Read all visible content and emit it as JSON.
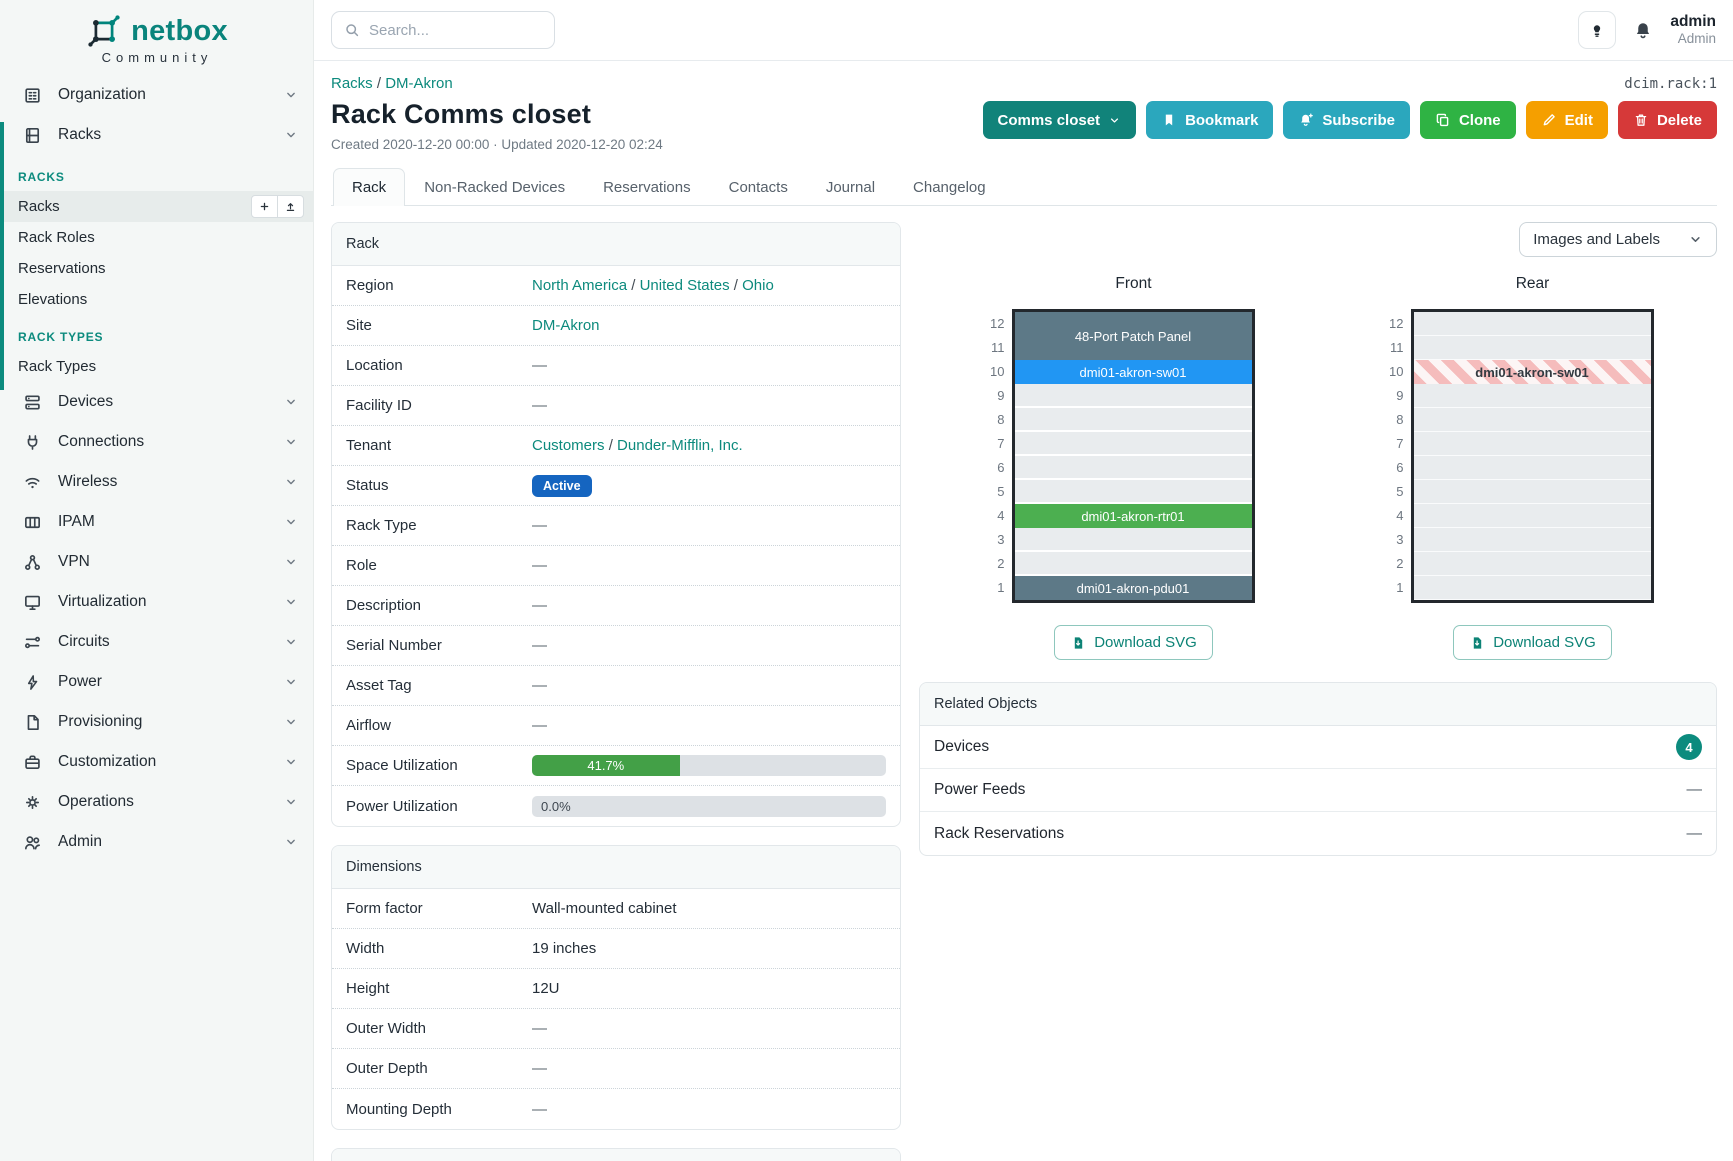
{
  "brand": {
    "name": "netbox",
    "subtitle": "Community"
  },
  "topbar": {
    "search_placeholder": "Search...",
    "user": {
      "username": "admin",
      "role": "Admin"
    }
  },
  "object_id": "dcim.rack:1",
  "breadcrumb": {
    "items": [
      "Racks",
      "DM-Akron"
    ],
    "separator": "/"
  },
  "page": {
    "title": "Rack Comms closet",
    "meta": "Created 2020-12-20 00:00 · Updated 2020-12-20 02:24"
  },
  "actions": [
    {
      "label": "Comms closet",
      "color": "#11837a",
      "chevron": true
    },
    {
      "label": "Bookmark",
      "color": "#2ba7bd",
      "icon": "bookmark"
    },
    {
      "label": "Subscribe",
      "color": "#2ba7bd",
      "icon": "bell-plus"
    },
    {
      "label": "Clone",
      "color": "#2fb344",
      "icon": "copy"
    },
    {
      "label": "Edit",
      "color": "#f59f00",
      "icon": "pencil"
    },
    {
      "label": "Delete",
      "color": "#d63939",
      "icon": "trash"
    }
  ],
  "tabs": [
    {
      "label": "Rack",
      "active": true
    },
    {
      "label": "Non-Racked Devices"
    },
    {
      "label": "Reservations"
    },
    {
      "label": "Contacts"
    },
    {
      "label": "Journal"
    },
    {
      "label": "Changelog"
    }
  ],
  "sidebar": {
    "top_groups": [
      {
        "label": "Organization",
        "icon": "building"
      },
      {
        "label": "Racks",
        "icon": "rack"
      }
    ],
    "sections": [
      {
        "title": "RACKS",
        "items": [
          {
            "label": "Racks",
            "active": true,
            "buttons": [
              "plus",
              "upload"
            ]
          },
          {
            "label": "Rack Roles"
          },
          {
            "label": "Reservations"
          },
          {
            "label": "Elevations"
          }
        ]
      },
      {
        "title": "RACK TYPES",
        "items": [
          {
            "label": "Rack Types"
          }
        ]
      }
    ],
    "bottom_groups": [
      {
        "label": "Devices",
        "icon": "server"
      },
      {
        "label": "Connections",
        "icon": "plug"
      },
      {
        "label": "Wireless",
        "icon": "wifi"
      },
      {
        "label": "IPAM",
        "icon": "ip-grid"
      },
      {
        "label": "VPN",
        "icon": "vpn"
      },
      {
        "label": "Virtualization",
        "icon": "monitor"
      },
      {
        "label": "Circuits",
        "icon": "circuit"
      },
      {
        "label": "Power",
        "icon": "bolt"
      },
      {
        "label": "Provisioning",
        "icon": "document"
      },
      {
        "label": "Customization",
        "icon": "briefcase"
      },
      {
        "label": "Operations",
        "icon": "operations"
      },
      {
        "label": "Admin",
        "icon": "users"
      }
    ]
  },
  "rack_panel": {
    "title": "Rack",
    "rows": [
      {
        "label": "Region",
        "type": "links",
        "parts": [
          "North America",
          "United States",
          "Ohio"
        ],
        "separator": "/"
      },
      {
        "label": "Site",
        "type": "links",
        "parts": [
          "DM-Akron"
        ],
        "separator": "/"
      },
      {
        "label": "Location",
        "type": "text",
        "value": "—",
        "muted": true
      },
      {
        "label": "Facility ID",
        "type": "text",
        "value": "—",
        "muted": true
      },
      {
        "label": "Tenant",
        "type": "links",
        "parts": [
          "Customers",
          "Dunder-Mifflin, Inc."
        ],
        "separator": "/"
      },
      {
        "label": "Status",
        "type": "badge",
        "value": "Active",
        "bg": "#1565c0"
      },
      {
        "label": "Rack Type",
        "type": "text",
        "value": "—",
        "muted": true
      },
      {
        "label": "Role",
        "type": "text",
        "value": "—",
        "muted": true
      },
      {
        "label": "Description",
        "type": "text",
        "value": "—",
        "muted": true
      },
      {
        "label": "Serial Number",
        "type": "text",
        "value": "—",
        "muted": true
      },
      {
        "label": "Asset Tag",
        "type": "text",
        "value": "—",
        "muted": true
      },
      {
        "label": "Airflow",
        "type": "text",
        "value": "—",
        "muted": true
      },
      {
        "label": "Space Utilization",
        "type": "progress",
        "percent": 41.7,
        "text": "41.7%",
        "color": "#43a047"
      },
      {
        "label": "Power Utilization",
        "type": "progress",
        "percent": 0,
        "text": "0.0%",
        "color": "#43a047"
      }
    ]
  },
  "dimensions_panel": {
    "title": "Dimensions",
    "rows": [
      {
        "label": "Form factor",
        "type": "text",
        "value": "Wall-mounted cabinet"
      },
      {
        "label": "Width",
        "type": "text",
        "value": "19 inches"
      },
      {
        "label": "Height",
        "type": "text",
        "value": "12U"
      },
      {
        "label": "Outer Width",
        "type": "text",
        "value": "—",
        "muted": true
      },
      {
        "label": "Outer Depth",
        "type": "text",
        "value": "—",
        "muted": true
      },
      {
        "label": "Mounting Depth",
        "type": "text",
        "value": "—",
        "muted": true
      }
    ]
  },
  "elevations": {
    "view_selector": "Images and Labels",
    "download_label": "Download SVG",
    "units": [
      "12",
      "11",
      "10",
      "9",
      "8",
      "7",
      "6",
      "5",
      "4",
      "3",
      "2",
      "1"
    ],
    "racks": [
      {
        "title": "Front",
        "variant": "front",
        "devices": [
          {
            "label": "48-Port Patch Panel",
            "top_unit": 12,
            "span": 2,
            "bg": "#5d7987",
            "fg": "#ffffff"
          },
          {
            "label": "dmi01-akron-sw01",
            "top_unit": 10,
            "span": 1,
            "bg": "#2196f3",
            "fg": "#ffffff"
          },
          {
            "label": "dmi01-akron-rtr01",
            "top_unit": 4,
            "span": 1,
            "bg": "#4caf50",
            "fg": "#ffffff"
          },
          {
            "label": "dmi01-akron-pdu01",
            "top_unit": 1,
            "span": 1,
            "bg": "#5d7987",
            "fg": "#ffffff"
          }
        ]
      },
      {
        "title": "Rear",
        "variant": "rear",
        "devices": [
          {
            "label": "dmi01-akron-sw01",
            "top_unit": 10,
            "span": 1,
            "striped": true
          }
        ]
      }
    ]
  },
  "related_panel": {
    "title": "Related Objects",
    "rows": [
      {
        "label": "Devices",
        "count": "4"
      },
      {
        "label": "Power Feeds",
        "value": "—"
      },
      {
        "label": "Rack Reservations",
        "value": "—"
      }
    ]
  },
  "colors": {
    "accent": "#0c8b7e",
    "status_active": "#1565c0",
    "progress_green": "#43a047",
    "device_slate": "#5d7987",
    "device_blue": "#2196f3",
    "device_green": "#4caf50"
  }
}
